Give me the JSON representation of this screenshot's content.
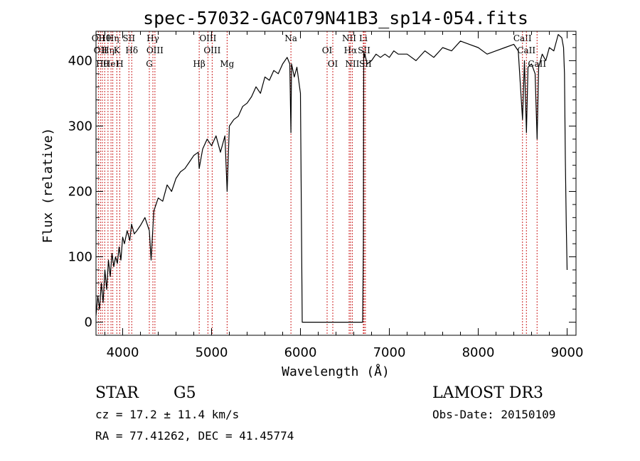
{
  "chart_data": {
    "type": "line",
    "title": "spec-57032-GAC079N41B3_sp14-054.fits",
    "xlabel": "Wavelength (Å)",
    "ylabel": "Flux (relative)",
    "xlim": [
      3700,
      9100
    ],
    "ylim": [
      -20,
      445
    ],
    "x_ticks": [
      4000,
      5000,
      6000,
      7000,
      8000,
      9000
    ],
    "y_ticks": [
      0,
      100,
      200,
      300,
      400
    ],
    "x_tick_labels": [
      "4000",
      "5000",
      "6000",
      "7000",
      "8000",
      "9000"
    ],
    "y_tick_labels": [
      "0",
      "100",
      "200",
      "300",
      "400"
    ],
    "grid": false,
    "series": [
      {
        "color": "#000000",
        "x": [
          3700,
          3720,
          3740,
          3760,
          3780,
          3800,
          3820,
          3840,
          3860,
          3880,
          3900,
          3920,
          3940,
          3960,
          3980,
          4000,
          4020,
          4050,
          4080,
          4100,
          4130,
          4160,
          4200,
          4250,
          4300,
          4320,
          4350,
          4400,
          4450,
          4500,
          4550,
          4600,
          4650,
          4700,
          4750,
          4800,
          4850,
          4861,
          4900,
          4950,
          5000,
          5050,
          5100,
          5150,
          5175,
          5200,
          5250,
          5300,
          5350,
          5400,
          5450,
          5500,
          5550,
          5600,
          5650,
          5700,
          5750,
          5800,
          5850,
          5880,
          5893,
          5900,
          5930,
          5960,
          6000,
          6020,
          6030,
          6040,
          6100,
          6300,
          6500,
          6700,
          6708,
          6712,
          6718,
          6725,
          6750,
          6800,
          6850,
          6900,
          6950,
          7000,
          7050,
          7100,
          7200,
          7300,
          7400,
          7500,
          7600,
          7700,
          7800,
          7900,
          8000,
          8100,
          8200,
          8300,
          8400,
          8450,
          8498,
          8520,
          8542,
          8560,
          8600,
          8640,
          8662,
          8680,
          8720,
          8760,
          8800,
          8850,
          8900,
          8940,
          8960,
          8970,
          8980,
          8990,
          9000
        ],
        "values": [
          10,
          40,
          20,
          60,
          30,
          80,
          50,
          95,
          70,
          105,
          85,
          100,
          90,
          115,
          95,
          130,
          120,
          140,
          125,
          150,
          135,
          140,
          148,
          160,
          140,
          95,
          170,
          190,
          185,
          210,
          200,
          220,
          230,
          235,
          245,
          255,
          260,
          235,
          265,
          280,
          270,
          285,
          260,
          285,
          200,
          300,
          310,
          315,
          330,
          335,
          345,
          360,
          350,
          375,
          370,
          385,
          380,
          395,
          405,
          395,
          290,
          395,
          375,
          390,
          350,
          0,
          0,
          0,
          0,
          0,
          0,
          0,
          120,
          415,
          405,
          410,
          395,
          400,
          410,
          405,
          410,
          405,
          415,
          410,
          410,
          400,
          415,
          405,
          420,
          415,
          430,
          425,
          420,
          410,
          415,
          420,
          425,
          415,
          310,
          400,
          290,
          390,
          395,
          380,
          280,
          390,
          410,
          400,
          420,
          415,
          440,
          435,
          420,
          380,
          250,
          150,
          80
        ]
      }
    ],
    "reference_lines": [
      {
        "x": 3727,
        "label": "OII"
      },
      {
        "x": 3750,
        "label": "OII"
      },
      {
        "x": 3771,
        "label": "Hθ"
      },
      {
        "x": 3798,
        "label": "Hθ"
      },
      {
        "x": 3835,
        "label": "Hη"
      },
      {
        "x": 3869,
        "label": "HeI"
      },
      {
        "x": 3889,
        "label": "Hη"
      },
      {
        "x": 3934,
        "label": "K"
      },
      {
        "x": 3968,
        "label": "H"
      },
      {
        "x": 4070,
        "label": "SII"
      },
      {
        "x": 4102,
        "label": "Hδ"
      },
      {
        "x": 4300,
        "label": "G"
      },
      {
        "x": 4340,
        "label": "Hγ"
      },
      {
        "x": 4363,
        "label": "OIII"
      },
      {
        "x": 4861,
        "label": "Hβ"
      },
      {
        "x": 4959,
        "label": "OIII"
      },
      {
        "x": 5007,
        "label": "OIII"
      },
      {
        "x": 5175,
        "label": "Mg"
      },
      {
        "x": 5893,
        "label": "Na"
      },
      {
        "x": 6300,
        "label": "OI"
      },
      {
        "x": 6364,
        "label": "OI"
      },
      {
        "x": 6548,
        "label": "NII"
      },
      {
        "x": 6563,
        "label": "Hα"
      },
      {
        "x": 6583,
        "label": "NII"
      },
      {
        "x": 6707,
        "label": "Li"
      },
      {
        "x": 6716,
        "label": "SII"
      },
      {
        "x": 6731,
        "label": "SII"
      },
      {
        "x": 8498,
        "label": "CaII"
      },
      {
        "x": 8542,
        "label": "CaII"
      },
      {
        "x": 8662,
        "label": "CaII"
      }
    ]
  },
  "info": {
    "object_type": "STAR",
    "subclass": "G5",
    "survey": "LAMOST DR3",
    "cz": "cz = 17.2 ± 11.4 km/s",
    "obs_date": "Obs-Date: 20150109",
    "coords": "RA =  77.41262, DEC =  41.45774"
  }
}
